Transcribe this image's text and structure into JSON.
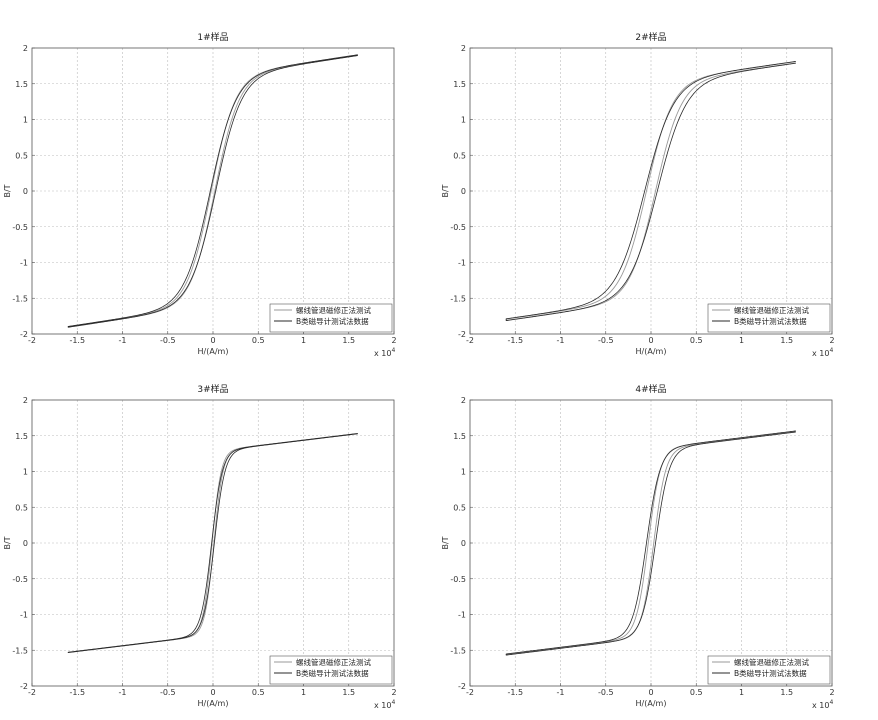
{
  "chart_data": [
    {
      "type": "line",
      "title": "1#样品",
      "xlabel": "H/(A/m)",
      "ylabel": "B/T",
      "x_exponent": "x 10",
      "x_exponent_power": "4",
      "xlim": [
        -2,
        2
      ],
      "ylim": [
        -2,
        2
      ],
      "x_ticks": [
        "-2",
        "-1.5",
        "-1",
        "-0.5",
        "0",
        "0.5",
        "1",
        "1.5",
        "2"
      ],
      "y_ticks": [
        "2",
        "1.5",
        "1",
        "0.5",
        "0",
        "-0.5",
        "-1",
        "-1.5",
        "-2"
      ],
      "grid": true,
      "legend_position": "bottom-right",
      "series": [
        {
          "name": "螺线管退磁修正法测试",
          "color": "#9a9a9a",
          "Bs": 1.9,
          "Hs": 1.6,
          "Br": 0.0,
          "Hc": 0.02,
          "scale": 0.16
        },
        {
          "name": "B类磁导计测试法数据",
          "color": "#2a2a2a",
          "Bs": 1.9,
          "Hs": 1.6,
          "Br": 0.0,
          "Hc": 0.03,
          "scale": 0.17
        }
      ]
    },
    {
      "type": "line",
      "title": "2#样品",
      "xlabel": "H/(A/m)",
      "ylabel": "B/T",
      "x_exponent": "x 10",
      "x_exponent_power": "4",
      "xlim": [
        -2,
        2
      ],
      "ylim": [
        -2,
        2
      ],
      "x_ticks": [
        "-2",
        "-1.5",
        "-1",
        "-0.5",
        "0",
        "0.5",
        "1",
        "1.5",
        "2"
      ],
      "y_ticks": [
        "2",
        "1.5",
        "1",
        "0.5",
        "0",
        "-0.5",
        "-1",
        "-1.5",
        "-2"
      ],
      "grid": true,
      "legend_position": "bottom-right",
      "series": [
        {
          "name": "螺线管退磁修正法测试",
          "color": "#9a9a9a",
          "Bs": 1.8,
          "Hs": 1.6,
          "Br": 0.0,
          "Hc": 0.05,
          "scale": 0.17
        },
        {
          "name": "B类磁导计测试法数据",
          "color": "#2a2a2a",
          "Bs": 1.8,
          "Hs": 1.6,
          "Br": 0.0,
          "Hc": 0.07,
          "scale": 0.19
        }
      ]
    },
    {
      "type": "line",
      "title": "3#样品",
      "xlabel": "H/(A/m)",
      "ylabel": "B/T",
      "x_exponent": "x 10",
      "x_exponent_power": "4",
      "xlim": [
        -2,
        2
      ],
      "ylim": [
        -2,
        2
      ],
      "x_ticks": [
        "-2",
        "-1.5",
        "-1",
        "-0.5",
        "0",
        "0.5",
        "1",
        "1.5",
        "2"
      ],
      "y_ticks": [
        "2",
        "1.5",
        "1",
        "0.5",
        "0",
        "-0.5",
        "-1",
        "-1.5",
        "-2"
      ],
      "grid": true,
      "legend_position": "bottom-right",
      "series": [
        {
          "name": "螺线管退磁修正法测试",
          "color": "#9a9a9a",
          "Bs": 1.53,
          "Hs": 1.6,
          "Br": 0.0,
          "Hc": 0.01,
          "scale": 0.06
        },
        {
          "name": "B类磁导计测试法数据",
          "color": "#2a2a2a",
          "Bs": 1.53,
          "Hs": 1.6,
          "Br": 0.0,
          "Hc": 0.015,
          "scale": 0.07
        }
      ]
    },
    {
      "type": "line",
      "title": "4#样品",
      "xlabel": "H/(A/m)",
      "ylabel": "B/T",
      "x_exponent": "x 10",
      "x_exponent_power": "4",
      "xlim": [
        -2,
        2
      ],
      "ylim": [
        -2,
        2
      ],
      "x_ticks": [
        "-2",
        "-1.5",
        "-1",
        "-0.5",
        "0",
        "0.5",
        "1",
        "1.5",
        "2"
      ],
      "y_ticks": [
        "2",
        "1.5",
        "1",
        "0.5",
        "0",
        "-0.5",
        "-1",
        "-1.5",
        "-2"
      ],
      "grid": true,
      "legend_position": "bottom-right",
      "series": [
        {
          "name": "螺线管退磁修正法测试",
          "color": "#9a9a9a",
          "Bs": 1.56,
          "Hs": 1.6,
          "Br": 0.0,
          "Hc": 0.03,
          "scale": 0.08
        },
        {
          "name": "B类磁导计测试法数据",
          "color": "#2a2a2a",
          "Bs": 1.56,
          "Hs": 1.6,
          "Br": 0.0,
          "Hc": 0.05,
          "scale": 0.09
        }
      ]
    }
  ]
}
